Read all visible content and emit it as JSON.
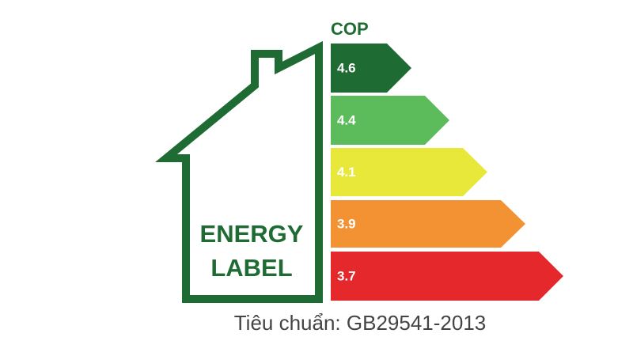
{
  "house": {
    "lines": [
      "ENERGY",
      "LABEL"
    ],
    "color": "#1e6b34"
  },
  "scale": {
    "title": "COP",
    "levels": [
      {
        "label": "4.6",
        "color": "#1e6b34"
      },
      {
        "label": "4.4",
        "color": "#5cbb5a"
      },
      {
        "label": "4.1",
        "color": "#e7e83a"
      },
      {
        "label": "3.9",
        "color": "#f39232"
      },
      {
        "label": "3.7",
        "color": "#e4282b"
      }
    ]
  },
  "footer": "Tiêu chuẩn: GB29541-2013"
}
